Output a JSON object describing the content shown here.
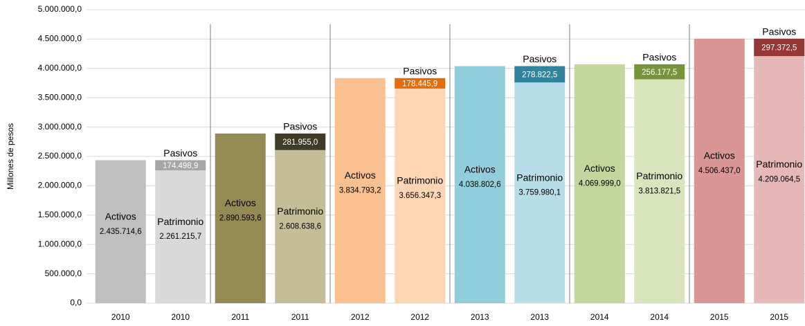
{
  "chart_data": {
    "type": "stacked_bar",
    "y_label": "Millones de pesos",
    "categories": [
      "2010",
      "2010",
      "2011",
      "2011",
      "2012",
      "2012",
      "2013",
      "2013",
      "2014",
      "2014",
      "2015",
      "2015"
    ],
    "series": [
      {
        "name": "Activos",
        "values": [
          2435714.6,
          null,
          2890593.6,
          null,
          3834793.2,
          null,
          4038802.6,
          null,
          4069999.0,
          null,
          4506437.0,
          null
        ],
        "value_labels": [
          "2.435.714,6",
          null,
          "2.890.593,6",
          null,
          "3.834.793,2",
          null,
          "4.038.802,6",
          null,
          "4.069.999,0",
          null,
          "4.506.437,0",
          null
        ],
        "colors": [
          "#bfbfbf",
          null,
          "#948a54",
          null,
          "#fac090",
          null,
          "#92cddc",
          null,
          "#c3d69b",
          null,
          "#da9694",
          null
        ]
      },
      {
        "name": "Patrimonio",
        "values": [
          null,
          2261215.7,
          null,
          2608638.6,
          null,
          3656347.3,
          null,
          3759980.1,
          null,
          3813821.5,
          null,
          4209064.5
        ],
        "value_labels": [
          null,
          "2.261.215,7",
          null,
          "2.608.638,6",
          null,
          "3.656.347,3",
          null,
          "3.759.980,1",
          null,
          "3.813.821,5",
          null,
          "4.209.064,5"
        ],
        "colors": [
          null,
          "#d9d9d9",
          null,
          "#c4bd97",
          null,
          "#fcd5b4",
          null,
          "#b7dee8",
          null,
          "#d7e4bc",
          null,
          "#e6b9b8"
        ]
      },
      {
        "name": "Pasivos",
        "values": [
          null,
          174498.9,
          null,
          281955.0,
          null,
          178445.9,
          null,
          278822.5,
          null,
          256177.5,
          null,
          297372.5
        ],
        "value_labels": [
          null,
          "174.498,9",
          null,
          "281.955,0",
          null,
          "178.445,9",
          null,
          "278.822,5",
          null,
          "256.177,5",
          null,
          "297.372,5"
        ],
        "colors": [
          null,
          "#a6a6a6",
          null,
          "#3f3b25",
          null,
          "#e46c0a",
          null,
          "#31849b",
          null,
          "#77933c",
          null,
          "#953735"
        ]
      }
    ],
    "ylim": [
      0,
      5000000
    ],
    "yticks": [
      {
        "value": 0,
        "label": "0,0"
      },
      {
        "value": 500000,
        "label": "500.000,0"
      },
      {
        "value": 1000000,
        "label": "1.000.000,0"
      },
      {
        "value": 1500000,
        "label": "1.500.000,0"
      },
      {
        "value": 2000000,
        "label": "2.000.000,0"
      },
      {
        "value": 2500000,
        "label": "2.500.000,0"
      },
      {
        "value": 3000000,
        "label": "3.000.000,0"
      },
      {
        "value": 3500000,
        "label": "3.500.000,0"
      },
      {
        "value": 4000000,
        "label": "4.000.000,0"
      },
      {
        "value": 4500000,
        "label": "4.500.000,0"
      },
      {
        "value": 5000000,
        "label": "5.000.000,0"
      }
    ],
    "grid": true
  }
}
